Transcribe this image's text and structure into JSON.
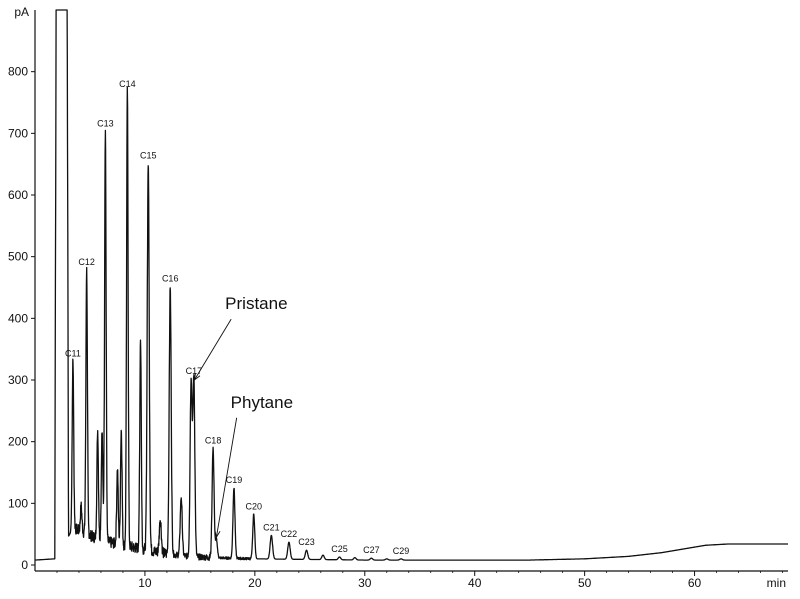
{
  "chart_data": {
    "type": "line",
    "xlabel": "min",
    "ylabel": "pA",
    "xlim": [
      0,
      68.5
    ],
    "ylim": [
      0,
      900
    ],
    "x_ticks": [
      10,
      20,
      30,
      40,
      50,
      60
    ],
    "y_ticks": [
      0,
      100,
      200,
      300,
      400,
      500,
      600,
      700,
      800
    ],
    "grid": false,
    "legend": "none",
    "baseline": [
      [
        0,
        8
      ],
      [
        1.8,
        10
      ],
      [
        3.5,
        60
      ],
      [
        5,
        48
      ],
      [
        6,
        40
      ],
      [
        8,
        32
      ],
      [
        10,
        25
      ],
      [
        12,
        18
      ],
      [
        14,
        14
      ],
      [
        16,
        12
      ],
      [
        18,
        11
      ],
      [
        20,
        10
      ],
      [
        25,
        9
      ],
      [
        30,
        8
      ],
      [
        35,
        8
      ],
      [
        40,
        8
      ],
      [
        45,
        8
      ],
      [
        50,
        10
      ],
      [
        54,
        14
      ],
      [
        57,
        20
      ],
      [
        59,
        26
      ],
      [
        61,
        32
      ],
      [
        63,
        34
      ],
      [
        65,
        34
      ],
      [
        68.5,
        34
      ]
    ],
    "solvent_peak": {
      "start": 1.8,
      "end": 3.05,
      "height": 900
    },
    "peaks": [
      {
        "label": "C11",
        "x": 3.45,
        "y": 330
      },
      {
        "label": "",
        "x": 4.2,
        "y": 95
      },
      {
        "label": "C12",
        "x": 4.7,
        "y": 478
      },
      {
        "label": "",
        "x": 5.7,
        "y": 218
      },
      {
        "label": "",
        "x": 6.1,
        "y": 215
      },
      {
        "label": "C13",
        "x": 6.4,
        "y": 703
      },
      {
        "label": "",
        "x": 7.5,
        "y": 155
      },
      {
        "label": "",
        "x": 7.85,
        "y": 220
      },
      {
        "label": "C14",
        "x": 8.4,
        "y": 767
      },
      {
        "label": "",
        "x": 9.6,
        "y": 368
      },
      {
        "label": "C15",
        "x": 10.3,
        "y": 651
      },
      {
        "label": "",
        "x": 11.4,
        "y": 75
      },
      {
        "label": "C16",
        "x": 12.3,
        "y": 452
      },
      {
        "label": "",
        "x": 13.3,
        "y": 110
      },
      {
        "label": "",
        "x": 14.2,
        "y": 300
      },
      {
        "label": "C17",
        "x": 14.45,
        "y": 302
      },
      {
        "label": "C18",
        "x": 16.2,
        "y": 189
      },
      {
        "label": "",
        "x": 16.5,
        "y": 42
      },
      {
        "label": "C19",
        "x": 18.1,
        "y": 125
      },
      {
        "label": "C20",
        "x": 19.9,
        "y": 82
      },
      {
        "label": "C21",
        "x": 21.5,
        "y": 48
      },
      {
        "label": "C22",
        "x": 23.1,
        "y": 37
      },
      {
        "label": "C23",
        "x": 24.7,
        "y": 24
      },
      {
        "label": "",
        "x": 26.2,
        "y": 16
      },
      {
        "label": "C25",
        "x": 27.7,
        "y": 13
      },
      {
        "label": "",
        "x": 29.1,
        "y": 12
      },
      {
        "label": "C27",
        "x": 30.6,
        "y": 11
      },
      {
        "label": "",
        "x": 32.0,
        "y": 10
      },
      {
        "label": "C29",
        "x": 33.3,
        "y": 10
      }
    ],
    "annotations": [
      {
        "label": "Pristane",
        "target_x": 14.5,
        "target_y": 300,
        "text_x": 17.3,
        "text_y": 415
      },
      {
        "label": "Phytane",
        "target_x": 16.5,
        "target_y": 45,
        "text_x": 17.8,
        "text_y": 255
      }
    ]
  }
}
